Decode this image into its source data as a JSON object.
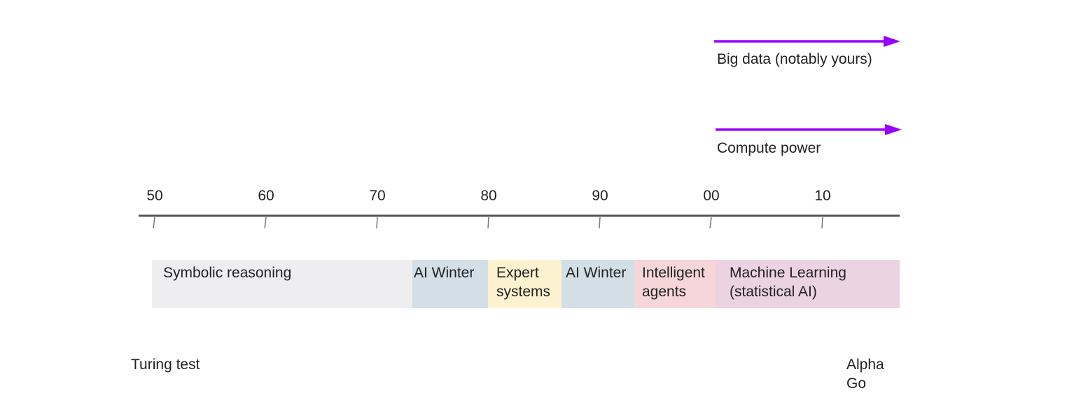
{
  "diagram": {
    "trends": [
      {
        "label": "Big data (notably yours)",
        "color": "#9b00ff"
      },
      {
        "label": "Compute power",
        "color": "#9b00ff"
      }
    ],
    "decades": [
      "50",
      "60",
      "70",
      "80",
      "90",
      "00",
      "10"
    ],
    "eras": [
      {
        "label": "Symbolic reasoning",
        "color": "#eeeef1"
      },
      {
        "label": "AI Winter",
        "color": "#d2dfe6"
      },
      {
        "label": "Expert\nsystems",
        "color": "#fdf2d0"
      },
      {
        "label": "AI Winter",
        "color": "#d2dfe6"
      },
      {
        "label": "Intelligent\nagents",
        "color": "#f6d6d8"
      },
      {
        "label": "Machine Learning\n(statistical AI)",
        "color": "#ebd3e2"
      }
    ],
    "events": [
      {
        "label": "Turing test"
      },
      {
        "label": "Alpha\nGo"
      }
    ],
    "axis_color": "#555555"
  }
}
